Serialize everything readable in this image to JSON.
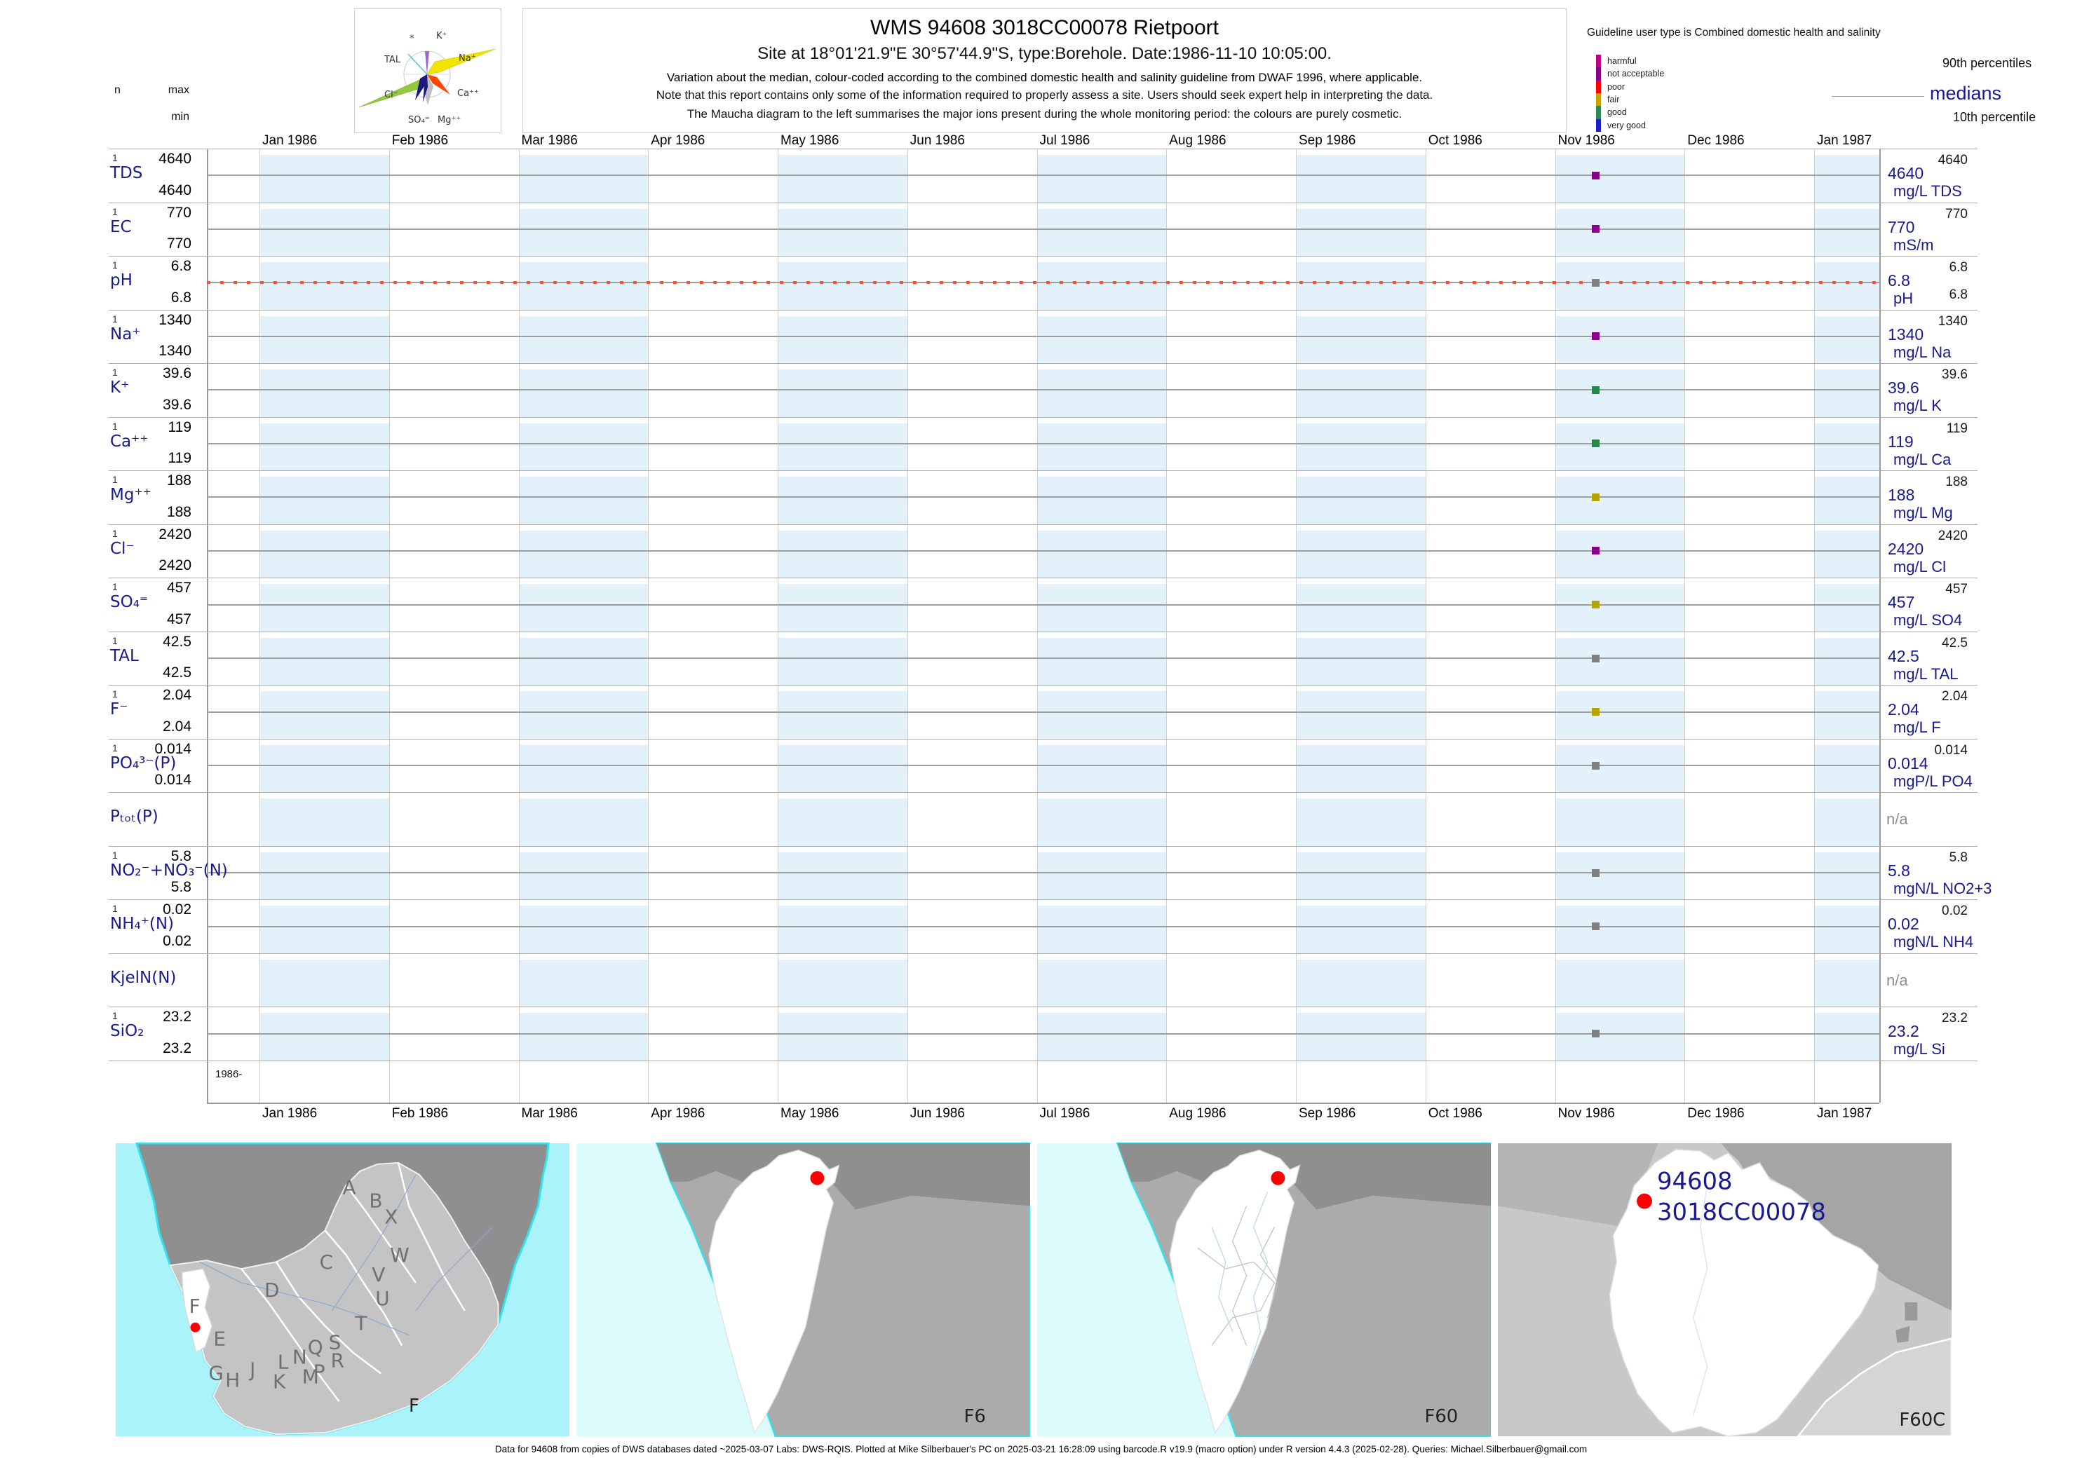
{
  "header": {
    "title": "WMS 94608 3018CC00078 Rietpoort",
    "subtitle": "Site at 18°01'21.9\"E 30°57'44.9\"S, type:Borehole. Date:1986-11-10 10:05:00.",
    "note1": "Variation about the median,  colour-coded according to the combined domestic health and salinity guideline from DWAF 1996, where applicable.",
    "note2": "Note that this report contains only some of the information required to properly assess a site. Users should seek expert help in interpreting the data.",
    "note3": "The Maucha diagram to the left summarises the major ions present during the whole monitoring period: the colours are purely cosmetic."
  },
  "maucha": {
    "ion_labels": [
      "*",
      "K⁺",
      "Na⁺",
      "TAL",
      "Ca⁺⁺",
      "Cl⁻",
      "SO₄⁼",
      "Mg⁺⁺"
    ]
  },
  "legend": {
    "title": "Guideline user type is Combined domestic health and salinity",
    "classes": [
      {
        "label": "harmful",
        "color": "#c0007e"
      },
      {
        "label": "not acceptable",
        "color": "#8b008b"
      },
      {
        "label": "poor",
        "color": "#ff0000"
      },
      {
        "label": "fair",
        "color": "#c8a500"
      },
      {
        "label": "good",
        "color": "#2e8b57"
      },
      {
        "label": "very good",
        "color": "#1e1ec8"
      }
    ],
    "p90_label": "90th percentiles",
    "median_label": "medians",
    "p10_label": "10th percentile"
  },
  "axis": {
    "left_header": {
      "n": "n",
      "max": "max",
      "min": "min"
    },
    "months": [
      "Jan 1986",
      "Feb 1986",
      "Mar 1986",
      "Apr 1986",
      "May 1986",
      "Jun 1986",
      "Jul 1986",
      "Aug 1986",
      "Sep 1986",
      "Oct 1986",
      "Nov 1986",
      "Dec 1986",
      "Jan 1987"
    ],
    "period_label": "1986-",
    "na_text": "n/a"
  },
  "chart_data": {
    "type": "scatter",
    "title": "Variation about the median for WMS site 94608 3018CC00078 Rietpoort",
    "x_range": [
      "Jan 1986",
      "Jan 1987"
    ],
    "sample_date": "1986-11-10",
    "legend_position": "top-right",
    "series": [
      {
        "param": "TDS",
        "display": "TDS",
        "n": "1",
        "max": "4640",
        "min": "4640",
        "p90": "4640",
        "median": "4640",
        "p10": null,
        "unit": "mg/L TDS",
        "value": 4640,
        "status_color": "#8b008b",
        "na": false,
        "guideline_dotted": false
      },
      {
        "param": "EC",
        "display": "EC",
        "n": "1",
        "max": "770",
        "min": "770",
        "p90": "770",
        "median": "770",
        "p10": null,
        "unit": "mS/m",
        "value": 770,
        "status_color": "#8b008b",
        "na": false,
        "guideline_dotted": false
      },
      {
        "param": "pH",
        "display": "pH",
        "n": "1",
        "max": "6.8",
        "min": "6.8",
        "p90": "6.8",
        "median": "6.8",
        "p10": "6.8",
        "unit": "pH",
        "value": 6.8,
        "status_color": "#808080",
        "na": false,
        "guideline_dotted": true
      },
      {
        "param": "Na",
        "display": "Na⁺",
        "n": "1",
        "max": "1340",
        "min": "1340",
        "p90": "1340",
        "median": "1340",
        "p10": null,
        "unit": "mg/L Na",
        "value": 1340,
        "status_color": "#8b008b",
        "na": false,
        "guideline_dotted": false
      },
      {
        "param": "K",
        "display": "K⁺",
        "n": "1",
        "max": "39.6",
        "min": "39.6",
        "p90": "39.6",
        "median": "39.6",
        "p10": null,
        "unit": "mg/L K",
        "value": 39.6,
        "status_color": "#238b45",
        "na": false,
        "guideline_dotted": false
      },
      {
        "param": "Ca",
        "display": "Ca⁺⁺",
        "n": "1",
        "max": "119",
        "min": "119",
        "p90": "119",
        "median": "119",
        "p10": null,
        "unit": "mg/L Ca",
        "value": 119,
        "status_color": "#238b45",
        "na": false,
        "guideline_dotted": false
      },
      {
        "param": "Mg",
        "display": "Mg⁺⁺",
        "n": "1",
        "max": "188",
        "min": "188",
        "p90": "188",
        "median": "188",
        "p10": null,
        "unit": "mg/L Mg",
        "value": 188,
        "status_color": "#b5a300",
        "na": false,
        "guideline_dotted": false
      },
      {
        "param": "Cl",
        "display": "Cl⁻",
        "n": "1",
        "max": "2420",
        "min": "2420",
        "p90": "2420",
        "median": "2420",
        "p10": null,
        "unit": "mg/L Cl",
        "value": 2420,
        "status_color": "#8b008b",
        "na": false,
        "guideline_dotted": false
      },
      {
        "param": "SO4",
        "display": "SO₄⁼",
        "n": "1",
        "max": "457",
        "min": "457",
        "p90": "457",
        "median": "457",
        "p10": null,
        "unit": "mg/L SO4",
        "value": 457,
        "status_color": "#b5a300",
        "na": false,
        "guideline_dotted": false
      },
      {
        "param": "TAL",
        "display": "TAL",
        "n": "1",
        "max": "42.5",
        "min": "42.5",
        "p90": "42.5",
        "median": "42.5",
        "p10": null,
        "unit": "mg/L TAL",
        "value": 42.5,
        "status_color": "#808080",
        "na": false,
        "guideline_dotted": false
      },
      {
        "param": "F",
        "display": "F⁻",
        "n": "1",
        "max": "2.04",
        "min": "2.04",
        "p90": "2.04",
        "median": "2.04",
        "p10": null,
        "unit": "mg/L F",
        "value": 2.04,
        "status_color": "#b5a300",
        "na": false,
        "guideline_dotted": false
      },
      {
        "param": "PO4",
        "display": "PO₄³⁻(P)",
        "n": "1",
        "max": "0.014",
        "min": "0.014",
        "p90": "0.014",
        "median": "0.014",
        "p10": null,
        "unit": "mgP/L PO4",
        "value": 0.014,
        "status_color": "#808080",
        "na": false,
        "guideline_dotted": false
      },
      {
        "param": "Ptot",
        "display": "Pₜₒₜ(P)",
        "n": "",
        "max": "",
        "min": "",
        "p90": "",
        "median": "",
        "p10": null,
        "unit": "",
        "value": null,
        "status_color": null,
        "na": true,
        "guideline_dotted": false
      },
      {
        "param": "NO2+NO3",
        "display": "NO₂⁻+NO₃⁻(N)",
        "n": "1",
        "max": "5.8",
        "min": "5.8",
        "p90": "5.8",
        "median": "5.8",
        "p10": null,
        "unit": "mgN/L NO2+3",
        "value": 5.8,
        "status_color": "#808080",
        "na": false,
        "guideline_dotted": false
      },
      {
        "param": "NH4",
        "display": "NH₄⁺(N)",
        "n": "1",
        "max": "0.02",
        "min": "0.02",
        "p90": "0.02",
        "median": "0.02",
        "p10": null,
        "unit": "mgN/L NH4",
        "value": 0.02,
        "status_color": "#808080",
        "na": false,
        "guideline_dotted": false
      },
      {
        "param": "KjelN",
        "display": "KjelN(N)",
        "n": "",
        "max": "",
        "min": "",
        "p90": "",
        "median": "",
        "p10": null,
        "unit": "",
        "value": null,
        "status_color": null,
        "na": true,
        "guideline_dotted": false
      },
      {
        "param": "SiO2",
        "display": "SiO₂",
        "n": "1",
        "max": "23.2",
        "min": "23.2",
        "p90": "23.2",
        "median": "23.2",
        "p10": null,
        "unit": "mg/L Si",
        "value": 23.2,
        "status_color": "#808080",
        "na": false,
        "guideline_dotted": false
      }
    ]
  },
  "maps": {
    "colors": {
      "ocean_bright": "#aaf3fb",
      "ocean_pale": "#dcfbfc",
      "coast": "#2fe3ef",
      "land_dark": "#8f8f8f",
      "land_mid": "#ababab",
      "land_light": "#c4c4c4",
      "region_white": "#ffffff",
      "site_dot": "#ff0000",
      "site_label": "#1a1a8f"
    },
    "panel1": {
      "label": "F",
      "region_letters": [
        "A",
        "B",
        "X",
        "C",
        "W",
        "V",
        "U",
        "D",
        "T",
        "F",
        "E",
        "S",
        "Q",
        "R",
        "N",
        "L",
        "P",
        "M",
        "J",
        "K",
        "G",
        "H"
      ]
    },
    "panel2": {
      "label": "F6"
    },
    "panel3": {
      "label": "F60"
    },
    "panel4": {
      "label": "F60C",
      "site_number": "94608",
      "site_code": "3018CC00078"
    }
  },
  "footer": "Data for 94608 from copies of DWS databases dated ~2025-03-07 Labs: DWS-RQIS. Plotted at Mike Silberbauer's PC on 2025-03-21 16:28:09 using barcode.R v19.9 (macro option) under R version 4.4.3 (2025-02-28). Queries: Michael.Silberbauer@gmail.com"
}
